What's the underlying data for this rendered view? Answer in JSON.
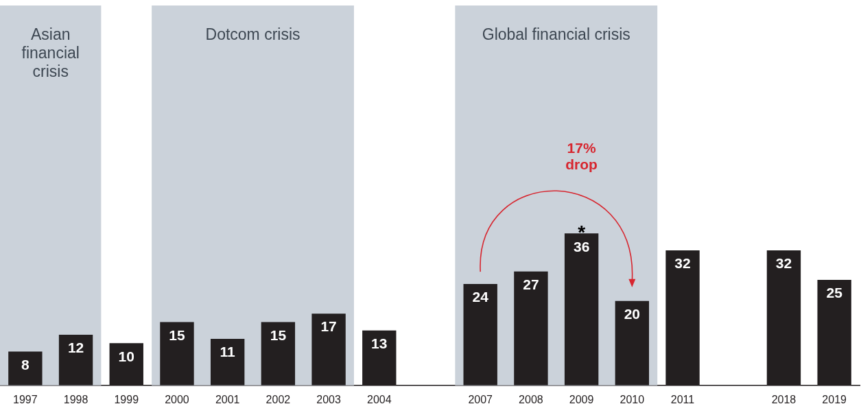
{
  "chart_data": {
    "type": "bar",
    "categories": [
      "1997",
      "1998",
      "1999",
      "2000",
      "2001",
      "2002",
      "2003",
      "2004",
      null,
      "2007",
      "2008",
      "2009",
      "2010",
      "2011",
      null,
      "2018",
      "2019"
    ],
    "values": [
      8,
      12,
      10,
      15,
      11,
      15,
      17,
      13,
      null,
      24,
      27,
      36,
      20,
      32,
      null,
      32,
      25
    ],
    "color": "#231f20",
    "data_labels": true,
    "bands": [
      {
        "axis": "x",
        "from": "1997",
        "to": "1998",
        "label": "Asian financial crisis",
        "color": "#cbd2da"
      },
      {
        "axis": "x",
        "from": "2000",
        "to": "2003",
        "label": "Dotcom crisis",
        "color": "#cbd2da"
      },
      {
        "axis": "x",
        "from": "2007",
        "to": "2010",
        "label": "Global financial crisis",
        "color": "#cbd2da"
      }
    ],
    "annotations": [
      {
        "text": "*",
        "x": "2009",
        "y": 36
      },
      "17% drop"
    ],
    "grid": false,
    "legend": false
  }
}
